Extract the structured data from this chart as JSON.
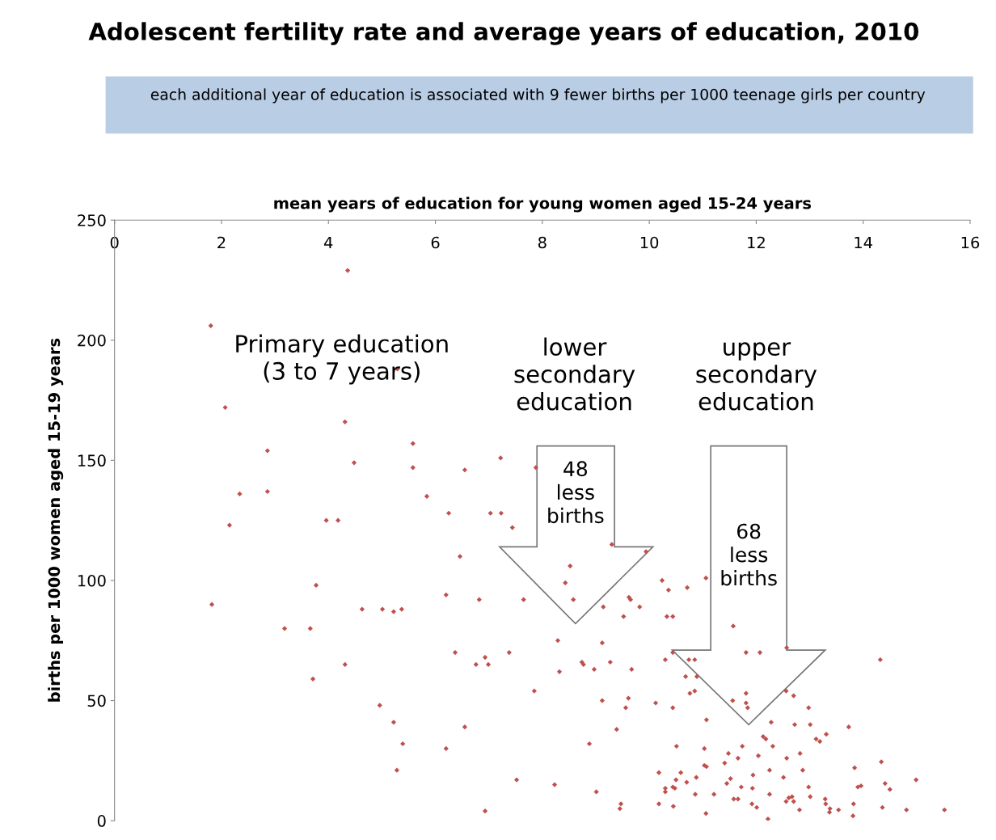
{
  "chart_data": {
    "type": "scatter",
    "title": "Adolescent fertility rate and average years of education, 2010",
    "subtitle": "each additional year of education is associated with 9 fewer births per 1000 teenage girls per country",
    "xlabel": "mean years of education for young women aged 15-24 years",
    "ylabel": "births per 1000 women aged 15-19 years",
    "xlim": [
      0,
      16
    ],
    "xticks": [
      0,
      2,
      4,
      6,
      8,
      10,
      12,
      14,
      16
    ],
    "ylim": [
      0,
      250
    ],
    "yticks": [
      0,
      50,
      100,
      150,
      200,
      250
    ],
    "grid": false,
    "legend": false,
    "marker": "diamond",
    "annotations": [
      "Primary education\n(3 to 7 years)",
      "lower\nsecondary\neducation",
      "upper\nsecondary\neducation",
      "48\nless\nbirths",
      "68\nless\nbirths"
    ],
    "series": [
      {
        "color": "#c0504d",
        "x": [
          1.8,
          1.82,
          2.07,
          2.15,
          2.34,
          2.86,
          2.86,
          3.18,
          3.66,
          3.71,
          3.77,
          3.96,
          4.18,
          4.31,
          4.31,
          4.36,
          4.48,
          4.63,
          5.01,
          4.96,
          5.22,
          5.37,
          5.29,
          5.22,
          5.39,
          5.28,
          5.58,
          5.58,
          5.84,
          6.2,
          6.25,
          6.2,
          6.37,
          6.46,
          6.55,
          6.55,
          7.22,
          7.88,
          7.03,
          7.23,
          7.44,
          9.3,
          9.94,
          8.52,
          8.43,
          8.58,
          6.82,
          7.65,
          9.14,
          9.52,
          9.62,
          9.65,
          9.82,
          10.24,
          10.36,
          10.71,
          11.06,
          10.33,
          10.44,
          8.29,
          9.12,
          7.38,
          6.93,
          6.76,
          6.99,
          8.74,
          8.77,
          8.97,
          9.27,
          9.67,
          8.32,
          10.3,
          10.44,
          10.74,
          10.85,
          10.68,
          10.89,
          10.76,
          10.85,
          7.85,
          9.12,
          9.61,
          9.56,
          10.12,
          10.44,
          11.07,
          9.39,
          8.88,
          10.51,
          11.03,
          11.03,
          11.07,
          7.52,
          8.23,
          9.01,
          10.18,
          10.59,
          10.5,
          10.7,
          10.88,
          10.3,
          10.3,
          10.44,
          10.48,
          10.86,
          6.93,
          9.47,
          9.45,
          10.18,
          10.45,
          11.06,
          11.57,
          12.57,
          14.32,
          11.81,
          12.07,
          11.56,
          11.81,
          11.81,
          11.84,
          12.56,
          12.7,
          12.98,
          12.28,
          12.72,
          13.01,
          13.73,
          12.13,
          12.18,
          12.31,
          13.12,
          13.19,
          13.31,
          11.74,
          11.48,
          11.41,
          11.66,
          12.04,
          12.57,
          12.82,
          11.94,
          12.25,
          12.87,
          12.51,
          11.52,
          11.45,
          11.72,
          11.93,
          13.84,
          14.34,
          14.99,
          14.41,
          14.5,
          13.9,
          13.96,
          12.98,
          11.21,
          12.25,
          13.01,
          13.29,
          12.61,
          12.67,
          12.56,
          12.7,
          11.58,
          11.66,
          11.92,
          12.01,
          12.81,
          13.3,
          13.38,
          13.37,
          13.54,
          13.82,
          13.81,
          14.36,
          14.81,
          15.52,
          12.22
        ],
        "values": [
          206,
          90,
          172,
          123,
          136,
          154,
          137,
          80,
          80,
          59,
          98,
          125,
          125,
          166,
          65,
          229,
          149,
          88,
          88,
          48,
          87,
          88,
          188,
          41,
          32,
          21,
          157,
          147,
          135,
          94,
          128,
          30,
          70,
          110,
          39,
          146,
          151,
          147,
          128,
          128,
          122,
          115,
          112,
          106,
          99,
          92,
          92,
          92,
          89,
          85,
          93,
          92,
          89,
          100,
          96,
          97,
          101,
          85,
          85,
          75,
          74,
          70,
          68,
          65,
          65,
          66,
          65,
          63,
          66,
          63,
          62,
          67,
          70,
          67,
          67,
          60,
          60,
          53,
          54,
          54,
          50,
          51,
          47,
          49,
          47,
          42,
          38,
          32,
          31,
          30,
          23,
          22.5,
          17,
          15,
          12,
          20,
          20,
          17,
          16,
          18,
          13.5,
          12,
          14,
          13.5,
          11,
          4,
          7,
          5,
          7,
          6,
          3,
          81,
          72,
          67,
          70,
          70,
          50,
          53,
          49,
          47,
          54,
          52,
          47,
          41,
          40,
          40,
          39,
          35,
          34,
          31,
          34,
          33,
          36,
          31,
          28,
          24,
          26,
          27,
          26,
          28,
          19,
          21,
          21,
          18,
          17.5,
          15.5,
          14,
          13.5,
          22,
          24.5,
          17,
          15.5,
          13,
          14,
          14.5,
          14,
          11,
          11,
          10,
          9,
          9.5,
          10,
          8,
          8,
          9,
          9,
          7,
          5.5,
          4.5,
          7,
          5,
          3.5,
          4.5,
          7,
          2,
          5.5,
          4.5,
          4.5,
          0.7
        ]
      }
    ]
  }
}
